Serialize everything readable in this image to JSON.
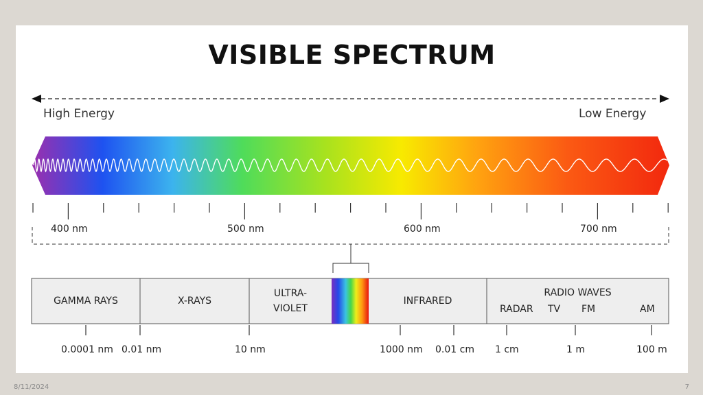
{
  "title": "VISIBLE SPECTRUM",
  "energy": {
    "high": "High Energy",
    "low": "Low Energy"
  },
  "wavelength_labels": [
    "400 nm",
    "500 nm",
    "600 nm",
    "700 nm"
  ],
  "bands": {
    "gamma": "GAMMA RAYS",
    "xrays": "X-RAYS",
    "uv_line1": "ULTRA-",
    "uv_line2": "VIOLET",
    "infrared": "INFRARED",
    "radio": "RADIO WAVES",
    "radar": "RADAR",
    "tv": "TV",
    "fm": "FM",
    "am": "AM"
  },
  "scale_labels": [
    "0.0001 nm",
    "0.01 nm",
    "10 nm",
    "1000 nm",
    "0.01 cm",
    "1 cm",
    "1 m",
    "100 m"
  ],
  "footer": {
    "date": "8/11/2024",
    "page": "7"
  }
}
